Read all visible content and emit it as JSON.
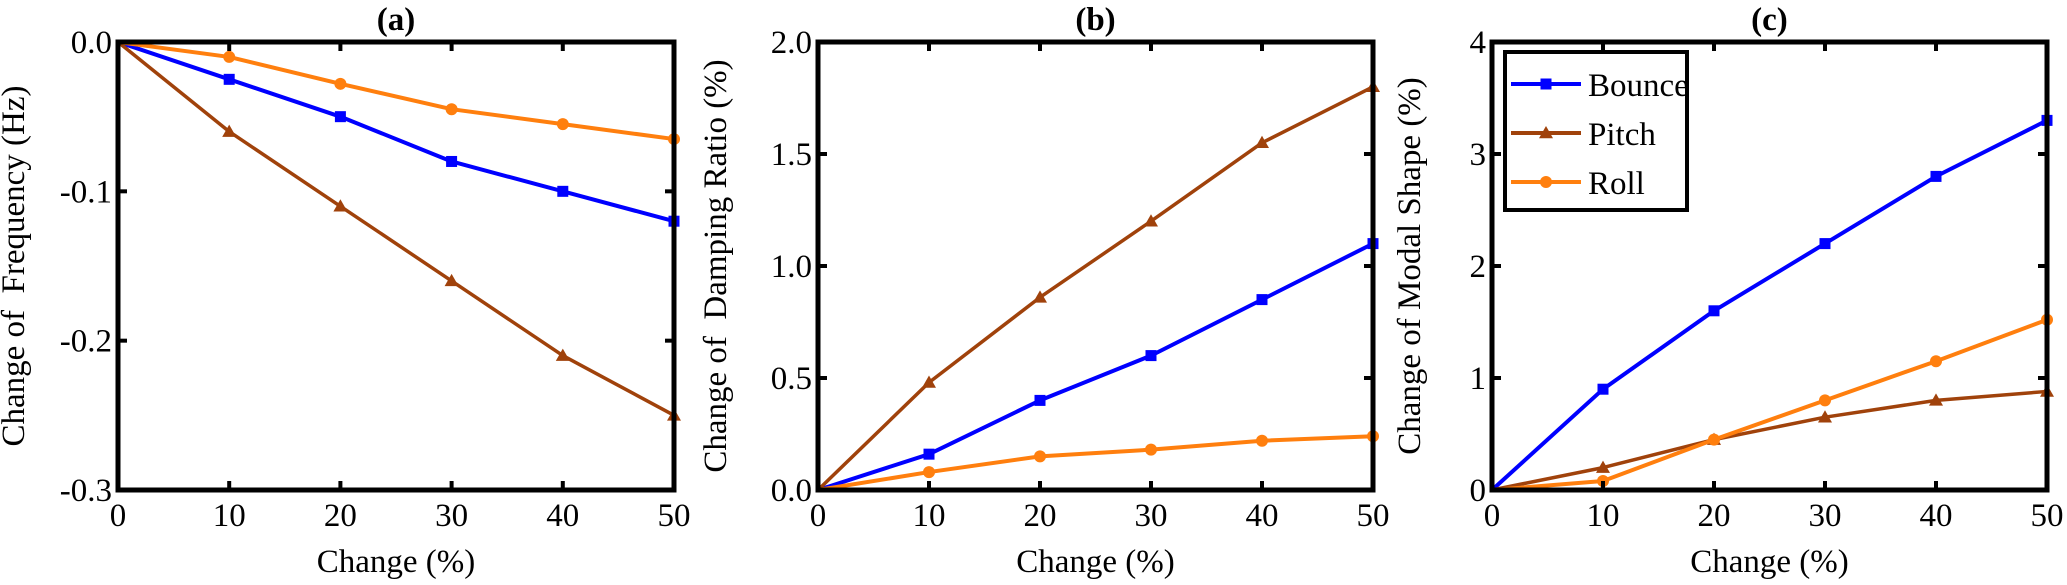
{
  "series_style": {
    "Bounce": {
      "color": "#0000ff",
      "marker": "square"
    },
    "Pitch": {
      "color": "#a0420b",
      "marker": "triangle"
    },
    "Roll": {
      "color": "#ff7f0e",
      "marker": "circle"
    }
  },
  "chart_data": [
    {
      "type": "line",
      "title": "(a)",
      "title_letter": "a",
      "xlabel": "Change (%)",
      "ylabel": "Change of  Frequency (Hz)",
      "x": [
        0,
        10,
        20,
        30,
        40,
        50
      ],
      "xlim": [
        0,
        50
      ],
      "ylim": [
        -0.3,
        0.0
      ],
      "xticks": [
        "0",
        "10",
        "20",
        "30",
        "40",
        "50"
      ],
      "xtick_values": [
        0,
        10,
        20,
        30,
        40,
        50
      ],
      "yticks": [
        "0.0",
        "-0.1",
        "-0.2",
        "-0.3"
      ],
      "ytick_values": [
        0.0,
        -0.1,
        -0.2,
        -0.3
      ],
      "grid": false,
      "legend": null,
      "series": [
        {
          "name": "Bounce",
          "values": [
            0,
            -0.025,
            -0.05,
            -0.08,
            -0.1,
            -0.12
          ]
        },
        {
          "name": "Pitch",
          "values": [
            0,
            -0.06,
            -0.11,
            -0.16,
            -0.21,
            -0.25
          ]
        },
        {
          "name": "Roll",
          "values": [
            0,
            -0.01,
            -0.028,
            -0.045,
            -0.055,
            -0.065
          ]
        }
      ]
    },
    {
      "type": "line",
      "title": "(b)",
      "title_letter": "b",
      "xlabel": "Change (%)",
      "ylabel": "Change of  Damping Ratio (%)",
      "x": [
        0,
        10,
        20,
        30,
        40,
        50
      ],
      "xlim": [
        0,
        50
      ],
      "ylim": [
        0.0,
        2.0
      ],
      "xticks": [
        "0",
        "10",
        "20",
        "30",
        "40",
        "50"
      ],
      "xtick_values": [
        0,
        10,
        20,
        30,
        40,
        50
      ],
      "yticks": [
        "0.0",
        "0.5",
        "1.0",
        "1.5",
        "2.0"
      ],
      "ytick_values": [
        0.0,
        0.5,
        1.0,
        1.5,
        2.0
      ],
      "grid": false,
      "legend": null,
      "series": [
        {
          "name": "Bounce",
          "values": [
            0,
            0.16,
            0.4,
            0.6,
            0.85,
            1.1
          ]
        },
        {
          "name": "Pitch",
          "values": [
            0,
            0.48,
            0.86,
            1.2,
            1.55,
            1.8
          ]
        },
        {
          "name": "Roll",
          "values": [
            0,
            0.08,
            0.15,
            0.18,
            0.22,
            0.24
          ]
        }
      ]
    },
    {
      "type": "line",
      "title": "(c)",
      "title_letter": "c",
      "xlabel": "Change (%)",
      "ylabel": "Change of Modal Shape (%)",
      "x": [
        0,
        10,
        20,
        30,
        40,
        50
      ],
      "xlim": [
        0,
        50
      ],
      "ylim": [
        0,
        4
      ],
      "xticks": [
        "0",
        "10",
        "20",
        "30",
        "40",
        "50"
      ],
      "xtick_values": [
        0,
        10,
        20,
        30,
        40,
        50
      ],
      "yticks": [
        "0",
        "1",
        "2",
        "3",
        "4"
      ],
      "ytick_values": [
        0,
        1,
        2,
        3,
        4
      ],
      "grid": false,
      "legend": {
        "position": "top-left",
        "entries": [
          "Bounce",
          "Pitch",
          "Roll"
        ]
      },
      "series": [
        {
          "name": "Bounce",
          "values": [
            0,
            0.9,
            1.6,
            2.2,
            2.8,
            3.3
          ]
        },
        {
          "name": "Pitch",
          "values": [
            0,
            0.2,
            0.45,
            0.65,
            0.8,
            0.88
          ]
        },
        {
          "name": "Roll",
          "values": [
            0,
            0.08,
            0.45,
            0.8,
            1.15,
            1.52
          ]
        }
      ]
    }
  ]
}
